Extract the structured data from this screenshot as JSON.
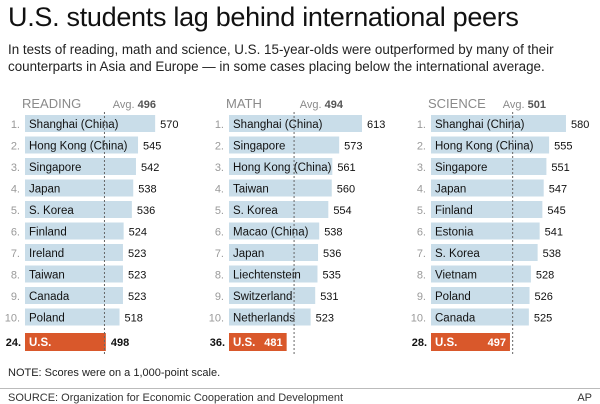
{
  "header": {
    "title": "U.S. students lag behind international peers",
    "subtitle": "In tests of reading, math and science, U.S. 15-year-olds were outperformed by many of their counterparts in Asia and Europe — in some cases placing below the international average."
  },
  "footer": {
    "note": "NOTE: Scores were on a 1,000-point scale.",
    "source": "SOURCE: Organization for Economic Cooperation and Development",
    "credit": "AP"
  },
  "colors": {
    "bar": "#c9dde9",
    "us_bar": "#d9582b",
    "header_text": "#8a8a8a",
    "avg_line": "#666666"
  },
  "chart_data": [
    {
      "type": "bar",
      "title": "READING",
      "avg_label": "Avg.",
      "avg_value": 496,
      "ranks": [
        "1.",
        "2.",
        "3.",
        "4.",
        "5.",
        "6.",
        "7.",
        "8.",
        "9.",
        "10."
      ],
      "categories": [
        "Shanghai (China)",
        "Hong Kong (China)",
        "Singapore",
        "Japan",
        "S. Korea",
        "Finland",
        "Ireland",
        "Taiwan",
        "Canada",
        "Poland"
      ],
      "values": [
        570,
        545,
        542,
        538,
        536,
        524,
        523,
        523,
        523,
        518
      ],
      "us": {
        "rank": "24.",
        "label": "U.S.",
        "value": 498
      }
    },
    {
      "type": "bar",
      "title": "MATH",
      "avg_label": "Avg.",
      "avg_value": 494,
      "ranks": [
        "1.",
        "2.",
        "3.",
        "4.",
        "5.",
        "6.",
        "7.",
        "8.",
        "9.",
        "10."
      ],
      "categories": [
        "Shanghai (China)",
        "Singapore",
        "Hong Kong (China)",
        "Taiwan",
        "S. Korea",
        "Macao (China)",
        "Japan",
        "Liechtenstein",
        "Switzerland",
        "Netherlands"
      ],
      "values": [
        613,
        573,
        561,
        560,
        554,
        538,
        536,
        535,
        531,
        523
      ],
      "us": {
        "rank": "36.",
        "label": "U.S.",
        "value": 481
      }
    },
    {
      "type": "bar",
      "title": "SCIENCE",
      "avg_label": "Avg.",
      "avg_value": 501,
      "ranks": [
        "1.",
        "2.",
        "3.",
        "4.",
        "5.",
        "6.",
        "7.",
        "8.",
        "9.",
        "10."
      ],
      "categories": [
        "Shanghai (China)",
        "Hong Kong (China)",
        "Singapore",
        "Japan",
        "Finland",
        "Estonia",
        "S. Korea",
        "Vietnam",
        "Poland",
        "Canada"
      ],
      "values": [
        580,
        555,
        551,
        547,
        545,
        541,
        538,
        528,
        526,
        525
      ],
      "us": {
        "rank": "28.",
        "label": "U.S.",
        "value": 497
      }
    }
  ]
}
